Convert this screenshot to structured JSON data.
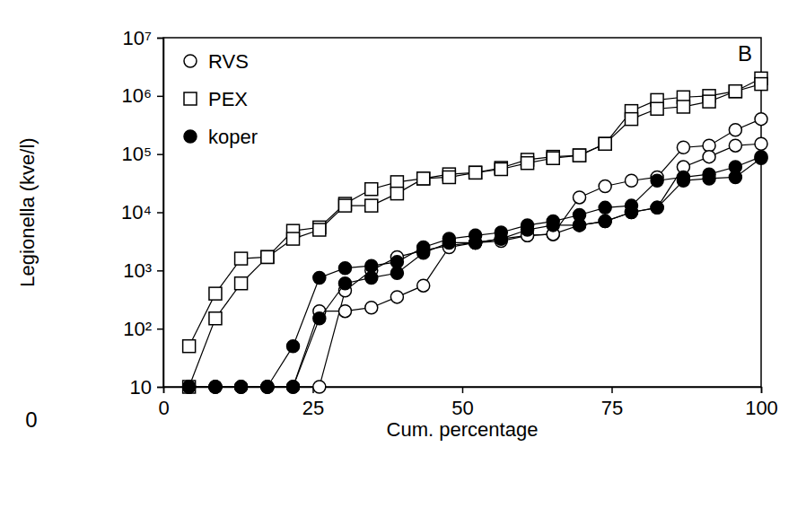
{
  "chart_data": {
    "type": "line",
    "x_label": "Cum. percentage",
    "y_label": "Legionella (kve/l)",
    "annotations": [
      {
        "text": "B"
      },
      {
        "text": "0"
      }
    ],
    "log": "y",
    "legend": "top-left",
    "xlim": [
      0,
      100
    ],
    "xticks": [
      0,
      25,
      50,
      75,
      100
    ],
    "ylim": [
      10,
      10000000
    ],
    "yticks": [
      10,
      {
        "value": 100,
        "label": "10²"
      },
      {
        "value": 1000,
        "label": "10³"
      },
      {
        "value": 10000,
        "label": "10⁴"
      },
      {
        "value": 100000,
        "label": "10⁵"
      },
      {
        "value": 1000000,
        "label": "10⁶"
      },
      {
        "value": 10000000,
        "label": "10⁷"
      }
    ],
    "x": [
      4.3,
      8.7,
      13.0,
      17.4,
      21.7,
      26.1,
      30.4,
      34.8,
      39.1,
      43.5,
      47.8,
      52.2,
      56.5,
      60.9,
      65.2,
      69.6,
      73.9,
      78.3,
      82.6,
      87.0,
      91.3,
      95.7,
      100
    ],
    "series": [
      {
        "name": "RVS",
        "color": "#000000",
        "marker": "open-circle",
        "lines": [
          {
            "values": [
              10,
              10,
              10,
              10,
              10,
              10,
              450,
              1000,
              1700,
              2200,
              2700,
              3000,
              3200,
              4000,
              4200,
              18000,
              28000,
              35000,
              40000,
              130000,
              140000,
              260000,
              400000
            ]
          },
          {
            "values": [
              10,
              10,
              10,
              10,
              10,
              200,
              200,
              230,
              350,
              550,
              2500,
              3000,
              3500,
              4000,
              4200,
              6000,
              7000,
              10000,
              12000,
              60000,
              90000,
              140000,
              150000
            ]
          }
        ]
      },
      {
        "name": "PEX",
        "color": "#000000",
        "marker": "open-square",
        "lines": [
          {
            "values": [
              50,
              400,
              1600,
              1700,
              4800,
              5500,
              14000,
              25000,
              33000,
              38000,
              45000,
              48000,
              58000,
              80000,
              90000,
              95000,
              150000,
              550000,
              850000,
              950000,
              1000000,
              1200000,
              2000000
            ]
          },
          {
            "values": [
              10,
              150,
              600,
              1700,
              3500,
              5000,
              13000,
              13000,
              21000,
              38000,
              40000,
              48000,
              55000,
              70000,
              85000,
              95000,
              150000,
              400000,
              600000,
              650000,
              800000,
              1200000,
              1600000
            ]
          }
        ]
      },
      {
        "name": "koper",
        "color": "#000000",
        "marker": "filled-circle",
        "lines": [
          {
            "values": [
              10,
              10,
              10,
              10,
              50,
              750,
              1100,
              1200,
              1400,
              2500,
              3500,
              4000,
              4500,
              6000,
              7000,
              9000,
              12000,
              13000,
              35000,
              40000,
              45000,
              60000,
              90000
            ]
          },
          {
            "values": [
              10,
              10,
              10,
              10,
              10,
              150,
              600,
              750,
              900,
              2000,
              3000,
              3000,
              3500,
              5000,
              6000,
              6000,
              7000,
              10000,
              12000,
              35000,
              38000,
              40000,
              85000
            ]
          }
        ]
      }
    ]
  }
}
